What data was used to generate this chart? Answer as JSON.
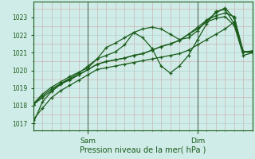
{
  "title": "",
  "xlabel": "Pression niveau de la mer( hPa )",
  "ylabel": "",
  "bg_color": "#d0ece8",
  "grid_color": "#b0d4d0",
  "line_color": "#1a5c1a",
  "vline_color": "#556655",
  "ylim": [
    1016.6,
    1023.9
  ],
  "xlim": [
    0,
    96
  ],
  "yticks": [
    1017,
    1018,
    1019,
    1020,
    1021,
    1022,
    1023
  ],
  "sam_x": 24,
  "dim_x": 72,
  "series": [
    [
      0,
      1017.0,
      4,
      1018.2,
      8,
      1018.8,
      12,
      1019.2,
      16,
      1019.5,
      20,
      1019.75,
      24,
      1020.05,
      28,
      1020.35,
      32,
      1020.5,
      36,
      1020.6,
      40,
      1020.7,
      44,
      1020.85,
      48,
      1020.95,
      52,
      1021.15,
      56,
      1021.35,
      60,
      1021.5,
      64,
      1021.7,
      68,
      1022.05,
      72,
      1022.45,
      76,
      1022.85,
      80,
      1023.1,
      84,
      1023.25,
      88,
      1023.05,
      92,
      1021.05,
      96,
      1021.05
    ],
    [
      0,
      1018.1,
      4,
      1018.65,
      8,
      1019.05,
      12,
      1019.35,
      16,
      1019.65,
      20,
      1019.9,
      24,
      1020.15,
      28,
      1020.65,
      32,
      1021.3,
      36,
      1021.55,
      40,
      1021.85,
      44,
      1022.15,
      48,
      1021.85,
      52,
      1021.25,
      56,
      1020.25,
      60,
      1019.85,
      64,
      1020.25,
      68,
      1020.85,
      72,
      1021.75,
      76,
      1022.65,
      80,
      1023.35,
      84,
      1023.45,
      88,
      1022.65,
      92,
      1021.05,
      96,
      1021.0
    ],
    [
      0,
      1018.05,
      4,
      1018.55,
      8,
      1018.95,
      12,
      1019.25,
      16,
      1019.55,
      20,
      1019.85,
      24,
      1020.25,
      28,
      1020.65,
      32,
      1020.85,
      36,
      1021.05,
      40,
      1021.45,
      44,
      1022.15,
      48,
      1022.35,
      52,
      1022.45,
      56,
      1022.35,
      60,
      1022.05,
      64,
      1021.75,
      68,
      1021.85,
      72,
      1022.25,
      76,
      1022.85,
      80,
      1023.25,
      84,
      1023.55,
      88,
      1022.95,
      92,
      1021.05,
      96,
      1021.1
    ],
    [
      0,
      1018.05,
      4,
      1018.45,
      8,
      1018.85,
      12,
      1019.25,
      16,
      1019.45,
      20,
      1019.75,
      24,
      1020.05,
      28,
      1020.35,
      32,
      1020.5,
      36,
      1020.6,
      40,
      1020.7,
      44,
      1020.85,
      48,
      1020.95,
      52,
      1021.15,
      56,
      1021.35,
      60,
      1021.5,
      64,
      1021.7,
      68,
      1022.05,
      72,
      1022.35,
      76,
      1022.75,
      80,
      1022.95,
      84,
      1023.05,
      88,
      1022.55,
      92,
      1020.85,
      96,
      1021.0
    ],
    [
      0,
      1017.2,
      4,
      1017.85,
      8,
      1018.45,
      12,
      1018.85,
      16,
      1019.15,
      20,
      1019.45,
      24,
      1019.75,
      28,
      1020.05,
      32,
      1020.15,
      36,
      1020.25,
      40,
      1020.35,
      44,
      1020.45,
      48,
      1020.55,
      52,
      1020.65,
      56,
      1020.75,
      60,
      1020.85,
      64,
      1020.95,
      68,
      1021.15,
      72,
      1021.45,
      76,
      1021.75,
      80,
      1022.05,
      84,
      1022.35,
      88,
      1022.75,
      92,
      1021.05,
      96,
      1021.1
    ]
  ]
}
